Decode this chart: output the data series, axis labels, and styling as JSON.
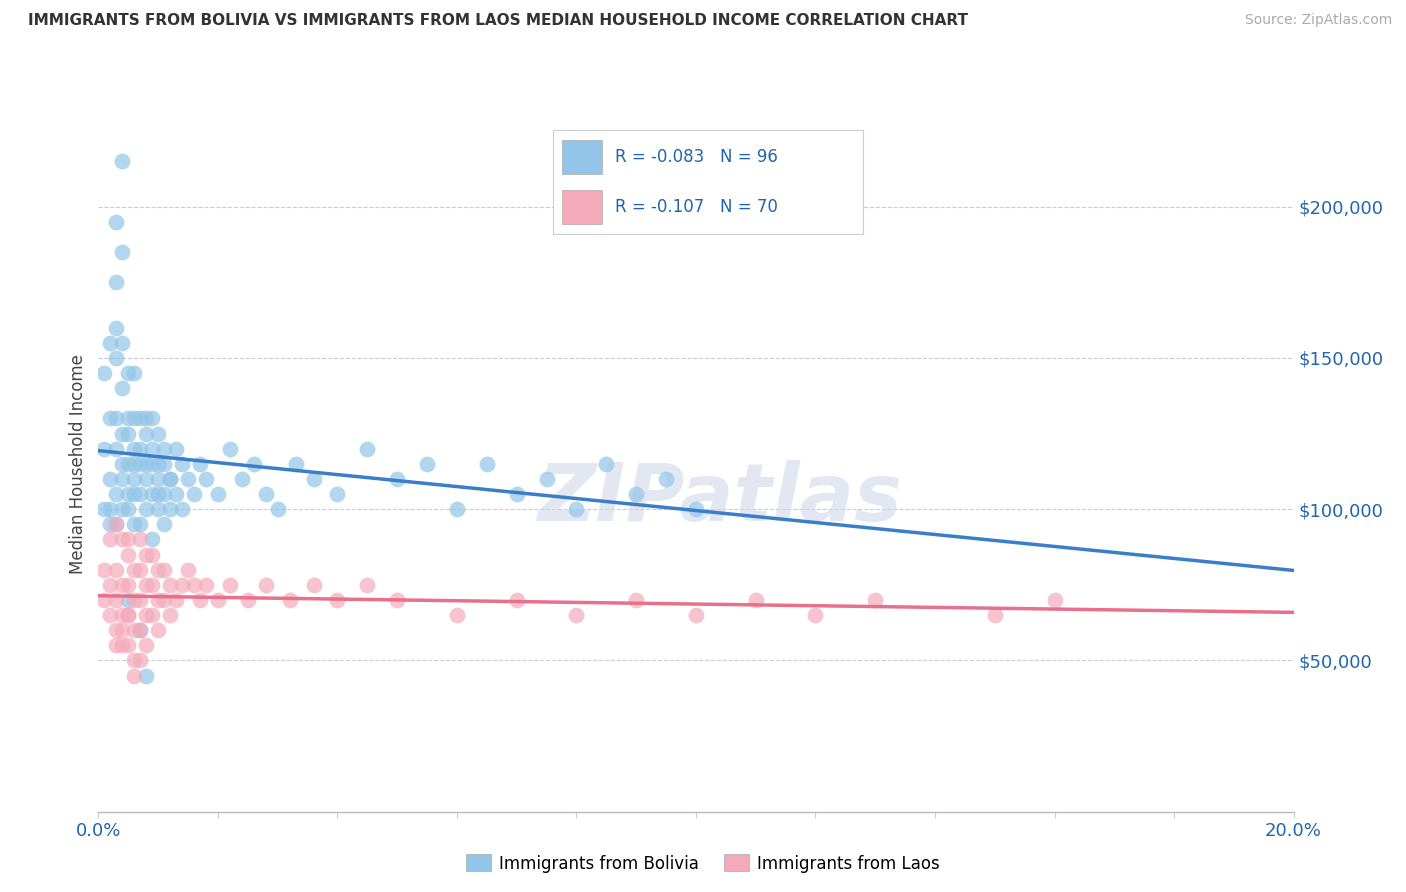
{
  "title": "IMMIGRANTS FROM BOLIVIA VS IMMIGRANTS FROM LAOS MEDIAN HOUSEHOLD INCOME CORRELATION CHART",
  "source": "Source: ZipAtlas.com",
  "ylabel": "Median Household Income",
  "xlim": [
    0.0,
    0.2
  ],
  "ylim": [
    0,
    230000
  ],
  "yticks": [
    50000,
    100000,
    150000,
    200000
  ],
  "ytick_labels": [
    "$50,000",
    "$100,000",
    "$150,000",
    "$200,000"
  ],
  "bolivia_R": -0.083,
  "bolivia_N": 96,
  "laos_R": -0.107,
  "laos_N": 70,
  "bolivia_color": "#92C5E8",
  "laos_color": "#F4AABB",
  "bolivia_line_color": "#3A7DC9",
  "laos_line_color": "#E8708A",
  "text_color": "#2166ac",
  "watermark": "ZIPatlas",
  "background_color": "#ffffff",
  "bolivia_x": [
    0.001,
    0.001,
    0.001,
    0.002,
    0.002,
    0.002,
    0.002,
    0.002,
    0.003,
    0.003,
    0.003,
    0.003,
    0.003,
    0.003,
    0.004,
    0.004,
    0.004,
    0.004,
    0.004,
    0.004,
    0.005,
    0.005,
    0.005,
    0.005,
    0.005,
    0.005,
    0.006,
    0.006,
    0.006,
    0.006,
    0.006,
    0.006,
    0.007,
    0.007,
    0.007,
    0.007,
    0.007,
    0.008,
    0.008,
    0.008,
    0.008,
    0.008,
    0.009,
    0.009,
    0.009,
    0.009,
    0.01,
    0.01,
    0.01,
    0.01,
    0.011,
    0.011,
    0.011,
    0.012,
    0.012,
    0.013,
    0.013,
    0.014,
    0.014,
    0.015,
    0.016,
    0.017,
    0.018,
    0.02,
    0.022,
    0.024,
    0.026,
    0.028,
    0.03,
    0.033,
    0.036,
    0.04,
    0.045,
    0.05,
    0.055,
    0.06,
    0.065,
    0.07,
    0.075,
    0.08,
    0.085,
    0.09,
    0.095,
    0.1,
    0.003,
    0.004,
    0.005,
    0.006,
    0.007,
    0.008,
    0.009,
    0.01,
    0.011,
    0.012,
    0.003,
    0.004
  ],
  "bolivia_y": [
    120000,
    145000,
    100000,
    130000,
    155000,
    110000,
    100000,
    95000,
    130000,
    160000,
    120000,
    105000,
    95000,
    150000,
    125000,
    140000,
    110000,
    100000,
    115000,
    155000,
    130000,
    115000,
    105000,
    145000,
    100000,
    125000,
    120000,
    130000,
    110000,
    105000,
    145000,
    115000,
    120000,
    130000,
    105000,
    115000,
    95000,
    130000,
    115000,
    125000,
    110000,
    100000,
    120000,
    105000,
    115000,
    130000,
    115000,
    125000,
    110000,
    100000,
    120000,
    105000,
    115000,
    100000,
    110000,
    120000,
    105000,
    115000,
    100000,
    110000,
    105000,
    115000,
    110000,
    105000,
    120000,
    110000,
    115000,
    105000,
    100000,
    115000,
    110000,
    105000,
    120000,
    110000,
    115000,
    100000,
    115000,
    105000,
    110000,
    100000,
    115000,
    105000,
    110000,
    100000,
    175000,
    185000,
    70000,
    95000,
    60000,
    45000,
    90000,
    105000,
    95000,
    110000,
    195000,
    215000
  ],
  "laos_x": [
    0.001,
    0.001,
    0.002,
    0.002,
    0.002,
    0.003,
    0.003,
    0.003,
    0.003,
    0.004,
    0.004,
    0.004,
    0.004,
    0.005,
    0.005,
    0.005,
    0.005,
    0.005,
    0.006,
    0.006,
    0.006,
    0.006,
    0.007,
    0.007,
    0.007,
    0.007,
    0.007,
    0.008,
    0.008,
    0.008,
    0.008,
    0.009,
    0.009,
    0.009,
    0.01,
    0.01,
    0.01,
    0.011,
    0.011,
    0.012,
    0.012,
    0.013,
    0.014,
    0.015,
    0.016,
    0.017,
    0.018,
    0.02,
    0.022,
    0.025,
    0.028,
    0.032,
    0.036,
    0.04,
    0.045,
    0.05,
    0.06,
    0.07,
    0.08,
    0.09,
    0.1,
    0.11,
    0.12,
    0.13,
    0.15,
    0.16,
    0.003,
    0.004,
    0.005,
    0.006
  ],
  "laos_y": [
    80000,
    70000,
    90000,
    75000,
    65000,
    95000,
    80000,
    70000,
    60000,
    90000,
    75000,
    65000,
    55000,
    85000,
    75000,
    65000,
    55000,
    90000,
    80000,
    70000,
    60000,
    50000,
    90000,
    80000,
    70000,
    60000,
    50000,
    85000,
    75000,
    65000,
    55000,
    85000,
    75000,
    65000,
    80000,
    70000,
    60000,
    80000,
    70000,
    75000,
    65000,
    70000,
    75000,
    80000,
    75000,
    70000,
    75000,
    70000,
    75000,
    70000,
    75000,
    70000,
    75000,
    70000,
    75000,
    70000,
    65000,
    70000,
    65000,
    70000,
    65000,
    70000,
    65000,
    70000,
    65000,
    70000,
    55000,
    60000,
    65000,
    45000
  ]
}
